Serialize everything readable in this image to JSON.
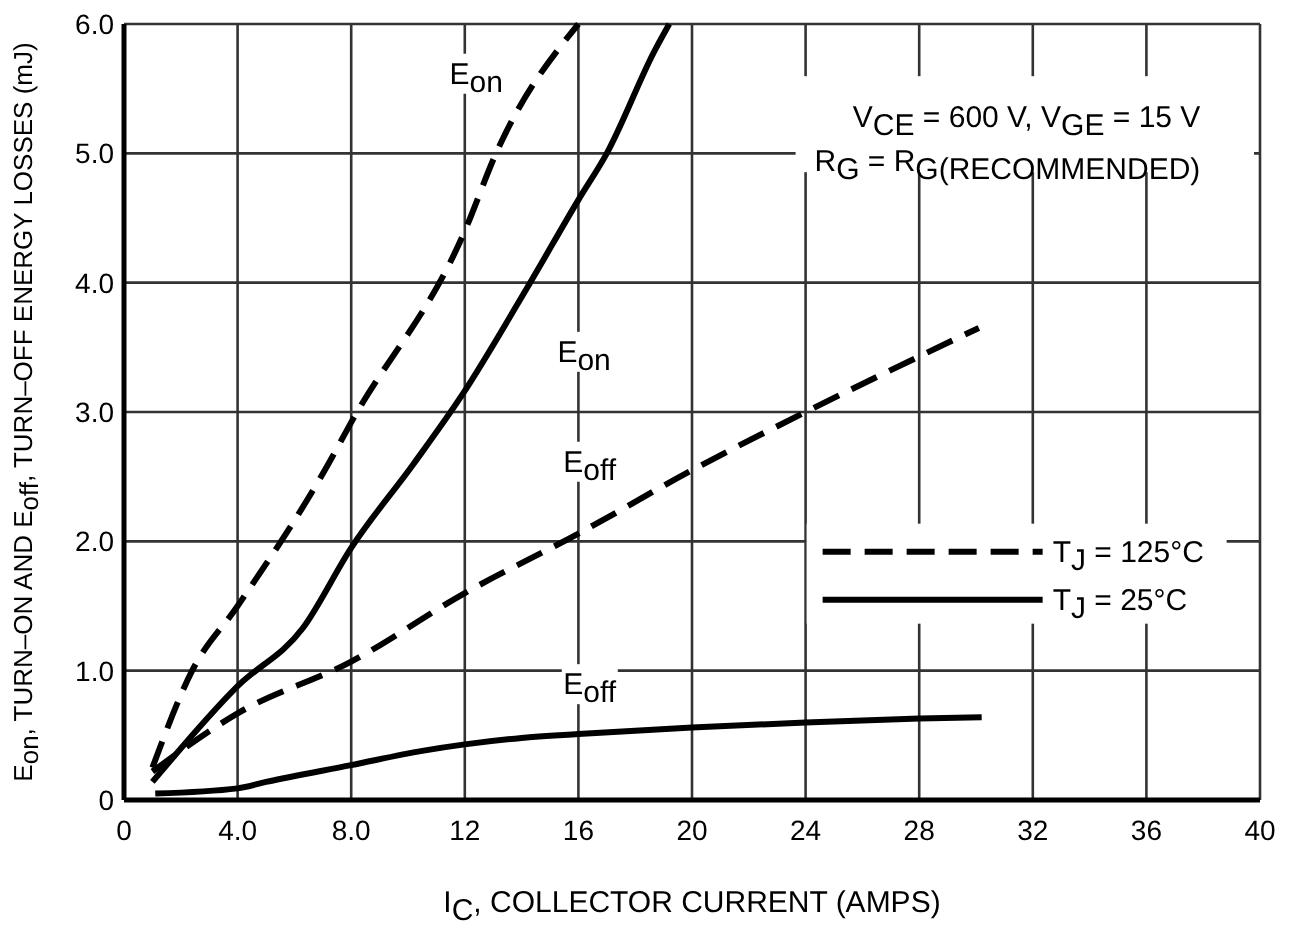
{
  "chart_data": {
    "type": "line",
    "xlabel": "I$_{C}$, COLLECTOR CURRENT (AMPS)",
    "ylabel": "E$_{on}$, TURN–ON AND E$_{off}$, TURN–OFF ENERGY LOSSES (mJ)",
    "xlim": [
      0,
      40
    ],
    "xticks": [
      0,
      {
        "value": 4,
        "label": "4.0"
      },
      {
        "value": 8,
        "label": "8.0"
      },
      12,
      16,
      20,
      24,
      28,
      32,
      36,
      40
    ],
    "ylim": [
      0,
      6
    ],
    "yticks": [
      0,
      {
        "value": 1,
        "label": "1.0"
      },
      {
        "value": 2,
        "label": "2.0"
      },
      {
        "value": 3,
        "label": "3.0"
      },
      {
        "value": 4,
        "label": "4.0"
      },
      {
        "value": 5,
        "label": "5.0"
      },
      {
        "value": 6,
        "label": "6.0"
      }
    ],
    "grid": true,
    "legend": "right",
    "marker": "none",
    "series": [
      {
        "name": "T$_{J}$ = 125°C",
        "color": "#000000",
        "line_style": "dashed",
        "x": [
          1,
          2.4,
          4,
          7.2,
          8,
          12,
          13.1,
          16
        ],
        "values": [
          0.25,
          1.0,
          1.5,
          2.6,
          2.92,
          4.4,
          5.0,
          6.0
        ]
      },
      {
        "name": "T$_{J}$ = 25°C",
        "color": "#000000",
        "line_style": "solid",
        "x": [
          1,
          4,
          6.3,
          8,
          10.2,
          11.9,
          14.3,
          16,
          17,
          18.7,
          19.2
        ],
        "values": [
          0.14,
          0.88,
          1.33,
          1.95,
          2.6,
          3.13,
          4.0,
          4.64,
          5.0,
          5.8,
          6.0
        ]
      },
      {
        "color": "#000000",
        "line_style": "dashed",
        "x": [
          1,
          4,
          8,
          12,
          16,
          20,
          24,
          30.1
        ],
        "values": [
          0.22,
          0.67,
          1.07,
          1.6,
          2.06,
          2.55,
          3.0,
          3.65
        ]
      },
      {
        "color": "#000000",
        "line_style": "solid",
        "x": [
          1.1,
          4,
          5,
          8,
          10.5,
          12,
          14,
          16,
          20,
          24,
          28,
          30.2
        ],
        "values": [
          0.05,
          0.09,
          0.14,
          0.27,
          0.38,
          0.43,
          0.48,
          0.51,
          0.56,
          0.6,
          0.63,
          0.64
        ]
      }
    ],
    "annotations": [
      {
        "text": "E$_{on}$",
        "x": 12.4,
        "y": 5.6
      },
      {
        "text": "E$_{on}$",
        "x": 16.2,
        "y": 3.45
      },
      {
        "text": "E$_{off}$",
        "x": 16.4,
        "y": 2.6
      },
      {
        "text": "E$_{off}$",
        "x": 16.4,
        "y": 0.88
      },
      "V$_{CE}$ = 600 V, V$_{GE}$ = 15 V",
      "R$_{G}$ = R$_{G(RECOMMENDED)}$"
    ]
  }
}
